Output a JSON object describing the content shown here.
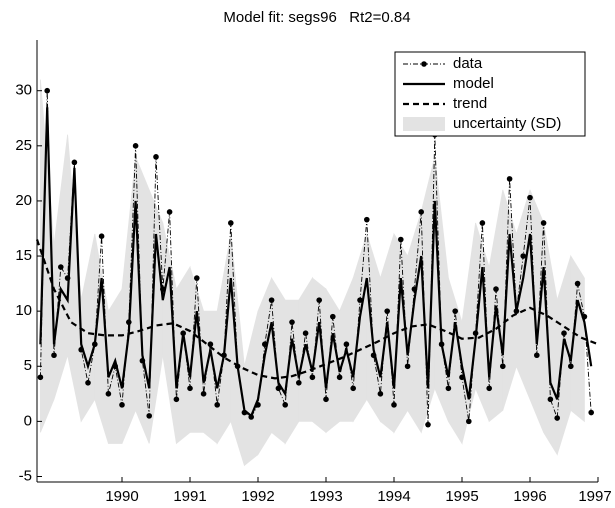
{
  "chart_data": {
    "type": "line",
    "title": "Model fit: segs96   Rt2=0.84",
    "x": [
      1988.8,
      1988.9,
      1989.0,
      1989.1,
      1989.2,
      1989.3,
      1989.4,
      1989.5,
      1989.6,
      1989.7,
      1989.8,
      1989.9,
      1990.0,
      1990.1,
      1990.2,
      1990.3,
      1990.4,
      1990.5,
      1990.6,
      1990.7,
      1990.8,
      1990.9,
      1991.0,
      1991.1,
      1991.2,
      1991.3,
      1991.4,
      1991.5,
      1991.6,
      1991.7,
      1991.8,
      1991.9,
      1992.0,
      1992.1,
      1992.2,
      1992.3,
      1992.4,
      1992.5,
      1992.6,
      1992.7,
      1992.8,
      1992.9,
      1993.0,
      1993.1,
      1993.2,
      1993.3,
      1993.4,
      1993.5,
      1993.6,
      1993.7,
      1993.8,
      1993.9,
      1994.0,
      1994.1,
      1994.2,
      1994.3,
      1994.4,
      1994.5,
      1994.6,
      1994.7,
      1994.8,
      1994.9,
      1995.0,
      1995.1,
      1995.2,
      1995.3,
      1995.4,
      1995.5,
      1995.6,
      1995.7,
      1995.8,
      1995.9,
      1996.0,
      1996.1,
      1996.2,
      1996.3,
      1996.4,
      1996.5,
      1996.6,
      1996.7,
      1996.8,
      1996.9
    ],
    "series": [
      {
        "name": "data",
        "color": "#000000",
        "values": [
          4,
          30,
          6,
          14,
          13,
          23.5,
          6.5,
          3.5,
          7,
          16.8,
          2.5,
          5,
          1.5,
          9,
          25,
          5.5,
          0.5,
          24,
          12,
          19,
          2,
          8,
          3,
          13,
          2.5,
          7,
          1.5,
          6,
          18,
          5,
          0.8,
          0.4,
          1.5,
          7,
          11,
          3,
          1.5,
          9,
          3.5,
          8,
          4,
          11,
          2,
          9.5,
          4,
          7,
          3,
          11,
          18.3,
          6,
          2.5,
          10,
          1.5,
          16.5,
          5,
          12,
          19,
          -0.3,
          26,
          7,
          3,
          10,
          4,
          0,
          8,
          18,
          3,
          12,
          5,
          22,
          10,
          15,
          20.3,
          6,
          18,
          2,
          0.3,
          8,
          5,
          12.5,
          9.5,
          0.8
        ]
      },
      {
        "name": "model",
        "color": "#000000",
        "values": [
          7,
          28.5,
          7,
          12,
          11,
          23,
          7,
          5,
          7,
          13,
          4,
          5.5,
          3,
          8,
          20,
          6,
          3,
          17,
          11,
          14,
          3,
          8,
          4,
          10,
          3.5,
          6.5,
          3,
          6,
          13,
          5,
          1,
          0.5,
          2,
          6,
          9,
          3.5,
          2.5,
          7.5,
          4,
          7,
          4.5,
          9,
          3,
          8,
          4.5,
          6.5,
          4,
          9.5,
          13,
          6.5,
          4,
          9,
          3,
          13,
          6,
          11,
          15,
          3,
          20,
          7,
          4,
          9,
          5,
          2,
          7.5,
          14,
          4,
          10.5,
          6,
          17,
          10,
          13,
          17,
          7,
          14,
          3.5,
          2,
          7.5,
          5.5,
          11,
          9,
          5
        ]
      },
      {
        "name": "trend",
        "color": "#000000",
        "x": [
          1988.75,
          1989,
          1989.25,
          1989.5,
          1989.75,
          1990,
          1990.25,
          1990.5,
          1990.75,
          1991,
          1991.25,
          1991.5,
          1991.75,
          1992,
          1992.25,
          1992.5,
          1992.75,
          1993,
          1993.25,
          1993.5,
          1993.75,
          1994,
          1994.25,
          1994.5,
          1994.75,
          1995,
          1995.25,
          1995.5,
          1995.75,
          1996,
          1996.25,
          1996.5,
          1996.75,
          1997
        ],
        "values": [
          16.5,
          12,
          9,
          8,
          7.8,
          7.8,
          8.2,
          8.7,
          8.9,
          8.2,
          7,
          5.8,
          4.9,
          4.2,
          3.9,
          4.1,
          4.6,
          5.2,
          5.8,
          6.5,
          7.2,
          8,
          8.6,
          8.8,
          8.2,
          7.5,
          7.6,
          8.4,
          9.6,
          10.3,
          9.6,
          8.6,
          7.6,
          7
        ]
      }
    ],
    "band": {
      "name": "uncertainty (SD)",
      "color": "#e3e3e3",
      "x": [
        1988.8,
        1989.0,
        1989.2,
        1989.4,
        1989.6,
        1989.8,
        1990.0,
        1990.2,
        1990.4,
        1990.6,
        1990.8,
        1991.0,
        1991.2,
        1991.4,
        1991.6,
        1991.8,
        1992.0,
        1992.2,
        1992.4,
        1992.6,
        1992.8,
        1993.0,
        1993.2,
        1993.4,
        1993.6,
        1993.8,
        1994.0,
        1994.2,
        1994.4,
        1994.6,
        1994.8,
        1995.0,
        1995.2,
        1995.4,
        1995.6,
        1995.8,
        1996.0,
        1996.2,
        1996.4,
        1996.6,
        1996.8
      ],
      "lower": [
        -1,
        2,
        6,
        0,
        2,
        -2,
        -2,
        1,
        -2,
        6,
        -2,
        -1,
        -1,
        -2,
        0,
        -4,
        -3,
        -1,
        -2,
        0,
        0,
        -1,
        0,
        0,
        2,
        0,
        -1,
        1,
        -1,
        3,
        0,
        -2,
        3,
        0,
        1,
        5,
        2,
        -1,
        -3,
        1,
        0
      ],
      "upper": [
        31,
        16,
        26,
        11,
        17,
        10,
        12,
        24,
        21,
        18,
        12,
        14,
        10,
        10,
        17,
        5,
        10,
        13,
        11,
        11,
        13,
        12,
        10,
        13,
        17,
        13,
        17,
        15,
        19,
        24,
        13,
        9,
        18,
        14,
        21,
        17,
        21,
        18,
        11,
        15,
        13
      ]
    },
    "xlim": [
      1988.75,
      1997
    ],
    "ylim": [
      -5.5,
      34.6
    ],
    "xticks": [
      1990,
      1991,
      1992,
      1993,
      1994,
      1995,
      1996,
      1997
    ],
    "yticks": [
      -5,
      0,
      5,
      10,
      15,
      20,
      25,
      30
    ],
    "legend": "upper right"
  }
}
